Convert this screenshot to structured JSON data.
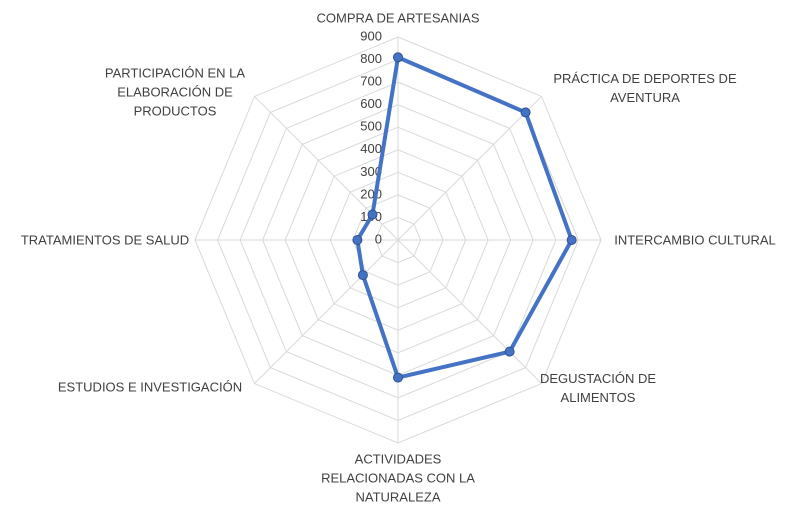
{
  "chart_data": {
    "type": "radar",
    "categories": [
      "COMPRA DE ARTESANIAS",
      "PRÁCTICA DE DEPORTES DE AVENTURA",
      "INTERCAMBIO CULTURAL",
      "DEGUSTACIÓN DE ALIMENTOS",
      "ACTIVIDADES RELACIONADAS CON LA NATURALEZA",
      "ESTUDIOS E INVESTIGACIÓN",
      "TRATAMIENTOS DE SALUD",
      "PARTICIPACIÓN EN LA ELABORACIÓN DE PRODUCTOS"
    ],
    "values": [
      810,
      800,
      770,
      700,
      610,
      220,
      180,
      160
    ],
    "color": "#4472c4",
    "ylim": [
      0,
      900
    ],
    "yticks": [
      0,
      100,
      200,
      300,
      400,
      500,
      600,
      700,
      800,
      900
    ],
    "grid": true
  }
}
